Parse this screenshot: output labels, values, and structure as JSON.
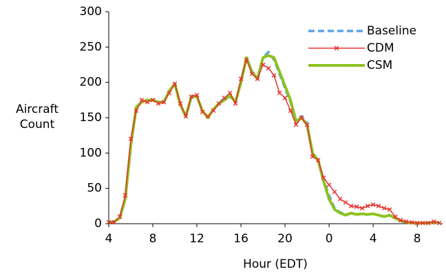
{
  "chart_data": {
    "type": "line",
    "x_label": "Hour (EDT)",
    "y_label": "Aircraft Count",
    "x": [
      4,
      4.5,
      5,
      5.5,
      6,
      6.5,
      7,
      7.5,
      8,
      8.5,
      9,
      9.5,
      10,
      10.5,
      11,
      11.5,
      12,
      12.5,
      13,
      13.5,
      14,
      14.5,
      15,
      15.5,
      16,
      16.5,
      17,
      17.5,
      18,
      18.5,
      19,
      19.5,
      20,
      20.5,
      21,
      21.5,
      22,
      22.5,
      23,
      23.5,
      24,
      24.5,
      25,
      25.5,
      26,
      26.5,
      27,
      27.5,
      28,
      28.5,
      29,
      29.5,
      30,
      30.5,
      31,
      31.5,
      32,
      32.5,
      33,
      33.5,
      34
    ],
    "series": [
      {
        "name": "Baseline",
        "color": "#5ba3e6",
        "values": [
          2,
          3,
          8,
          36,
          112,
          165,
          172,
          175,
          175,
          172,
          172,
          188,
          198,
          168,
          152,
          180,
          180,
          160,
          150,
          162,
          170,
          178,
          180,
          172,
          200,
          235,
          215,
          205,
          235,
          243,
          232,
          212,
          192,
          172,
          143,
          152,
          142,
          100,
          90,
          62,
          40,
          22,
          16,
          13,
          15,
          13,
          14,
          13,
          14,
          12,
          10,
          12,
          8,
          4,
          2,
          1,
          1,
          1,
          1,
          2,
          1
        ]
      },
      {
        "name": "CSM",
        "color": "#8dc21f",
        "values": [
          2,
          3,
          8,
          35,
          110,
          165,
          172,
          175,
          175,
          172,
          172,
          188,
          198,
          168,
          152,
          180,
          180,
          160,
          150,
          162,
          170,
          175,
          182,
          172,
          200,
          235,
          215,
          205,
          235,
          238,
          235,
          215,
          195,
          175,
          145,
          150,
          140,
          100,
          90,
          60,
          35,
          20,
          15,
          12,
          15,
          13,
          14,
          13,
          14,
          12,
          10,
          12,
          8,
          4,
          2,
          1,
          1,
          1,
          1,
          2,
          1
        ]
      },
      {
        "name": "CDM",
        "color": "#e8322e",
        "values": [
          2,
          2,
          10,
          40,
          120,
          160,
          175,
          172,
          175,
          170,
          172,
          185,
          198,
          170,
          152,
          180,
          182,
          158,
          152,
          160,
          170,
          178,
          185,
          170,
          205,
          232,
          212,
          205,
          225,
          220,
          210,
          185,
          178,
          160,
          140,
          150,
          140,
          95,
          90,
          65,
          55,
          45,
          35,
          30,
          25,
          24,
          22,
          25,
          27,
          25,
          22,
          20,
          10,
          5,
          3,
          2,
          1,
          1,
          1,
          3,
          1
        ]
      }
    ],
    "xlim": [
      4,
      34.3
    ],
    "ylim": [
      0,
      300
    ],
    "xticks": [
      4,
      8,
      12,
      16,
      20,
      {
        "value": 24,
        "label": "0"
      },
      {
        "value": 28,
        "label": "4"
      },
      {
        "value": 32,
        "label": "8"
      }
    ],
    "yticks": [
      0,
      50,
      100,
      150,
      200,
      250,
      300
    ],
    "legend": "upper right"
  }
}
